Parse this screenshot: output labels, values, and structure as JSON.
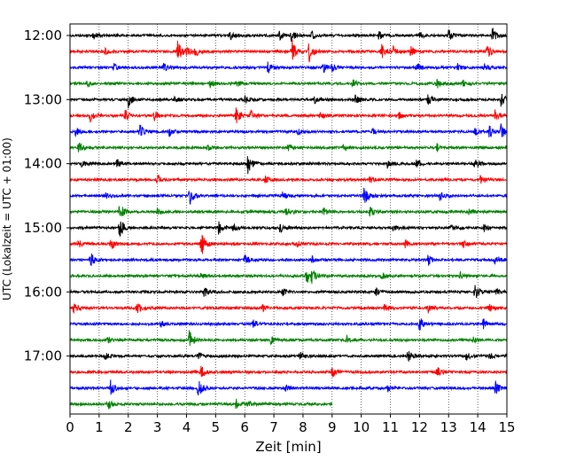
{
  "chart_data": {
    "type": "line",
    "title": "",
    "xlabel": "Zeit  [min]",
    "ylabel": "UTC (Lokalzeit = UTC + 01:00)",
    "xlim": [
      0,
      15
    ],
    "xticks": [
      "0",
      "1",
      "2",
      "3",
      "4",
      "5",
      "6",
      "7",
      "8",
      "9",
      "10",
      "11",
      "12",
      "13",
      "14",
      "15"
    ],
    "yticks": [
      "12:00",
      "13:00",
      "14:00",
      "15:00",
      "16:00",
      "17:00"
    ],
    "grid": "vertical dotted",
    "legend": "none",
    "trace_interval_min": 15,
    "traces": [
      {
        "start": "12:00",
        "color": "#000000",
        "end_min": 15,
        "events": [
          [
            0.8,
            4
          ],
          [
            5.5,
            5
          ],
          [
            7.2,
            6
          ],
          [
            7.6,
            6
          ],
          [
            8.3,
            5
          ],
          [
            10.6,
            5
          ],
          [
            12,
            4
          ],
          [
            13,
            6
          ],
          [
            14.5,
            9
          ]
        ]
      },
      {
        "start": "12:15",
        "color": "#ff0000",
        "end_min": 15,
        "events": [
          [
            1.2,
            4
          ],
          [
            3.7,
            12
          ],
          [
            4,
            5
          ],
          [
            4.3,
            6
          ],
          [
            7.6,
            16
          ],
          [
            8.2,
            14
          ],
          [
            10.7,
            8
          ],
          [
            11.1,
            5
          ],
          [
            11.7,
            6
          ],
          [
            14.3,
            10
          ]
        ]
      },
      {
        "start": "12:30",
        "color": "#0000ff",
        "end_min": 15,
        "events": [
          [
            1.5,
            4
          ],
          [
            3.2,
            5
          ],
          [
            6.8,
            7
          ],
          [
            8.7,
            6
          ],
          [
            9,
            4
          ],
          [
            11.9,
            5
          ],
          [
            13.3,
            4
          ],
          [
            14.2,
            5
          ]
        ]
      },
      {
        "start": "12:45",
        "color": "#008000",
        "end_min": 15,
        "events": [
          [
            0.6,
            4
          ],
          [
            4.8,
            5
          ],
          [
            5.7,
            4
          ],
          [
            9.7,
            6
          ],
          [
            12.6,
            5
          ],
          [
            13.5,
            4
          ]
        ]
      },
      {
        "start": "13:00",
        "color": "#000000",
        "end_min": 15,
        "events": [
          [
            2,
            9
          ],
          [
            3.6,
            4
          ],
          [
            6,
            5
          ],
          [
            8.4,
            4
          ],
          [
            9.8,
            5
          ],
          [
            12.3,
            6
          ],
          [
            14.8,
            8
          ]
        ]
      },
      {
        "start": "13:15",
        "color": "#ff0000",
        "end_min": 15,
        "events": [
          [
            0.7,
            7
          ],
          [
            1.9,
            6
          ],
          [
            2.9,
            6
          ],
          [
            5.7,
            9
          ],
          [
            6.2,
            6
          ],
          [
            8.6,
            5
          ],
          [
            11.3,
            5
          ],
          [
            14.6,
            7
          ]
        ]
      },
      {
        "start": "13:30",
        "color": "#0000ff",
        "end_min": 15,
        "events": [
          [
            0.2,
            5
          ],
          [
            2.4,
            8
          ],
          [
            3.4,
            5
          ],
          [
            7.8,
            4
          ],
          [
            10.4,
            4
          ],
          [
            13.9,
            4
          ],
          [
            14.4,
            7
          ],
          [
            14.8,
            9
          ]
        ]
      },
      {
        "start": "13:45",
        "color": "#008000",
        "end_min": 15,
        "events": [
          [
            0.3,
            6
          ],
          [
            4.7,
            4
          ],
          [
            7.5,
            4
          ],
          [
            9.4,
            4
          ],
          [
            12.6,
            4
          ]
        ]
      },
      {
        "start": "14:00",
        "color": "#000000",
        "end_min": 15,
        "events": [
          [
            0.4,
            4
          ],
          [
            1.6,
            6
          ],
          [
            6.1,
            12
          ],
          [
            10.9,
            5
          ],
          [
            11.9,
            6
          ],
          [
            13.9,
            8
          ]
        ]
      },
      {
        "start": "14:15",
        "color": "#ff0000",
        "end_min": 15,
        "events": [
          [
            3,
            5
          ],
          [
            6.7,
            4
          ],
          [
            10.3,
            4
          ],
          [
            14.1,
            5
          ]
        ]
      },
      {
        "start": "14:30",
        "color": "#0000ff",
        "end_min": 15,
        "events": [
          [
            1.2,
            4
          ],
          [
            4.1,
            11
          ],
          [
            7.3,
            4
          ],
          [
            10.1,
            16
          ],
          [
            12.7,
            5
          ]
        ]
      },
      {
        "start": "14:45",
        "color": "#008000",
        "end_min": 15,
        "events": [
          [
            1.7,
            11
          ],
          [
            3,
            4
          ],
          [
            7.4,
            6
          ],
          [
            8.7,
            5
          ],
          [
            10.3,
            6
          ],
          [
            13.7,
            4
          ]
        ]
      },
      {
        "start": "15:00",
        "color": "#000000",
        "end_min": 15,
        "events": [
          [
            1.7,
            12
          ],
          [
            5.1,
            7
          ],
          [
            5.6,
            5
          ],
          [
            7.2,
            6
          ],
          [
            11.1,
            5
          ],
          [
            13.1,
            4
          ],
          [
            14.2,
            5
          ]
        ]
      },
      {
        "start": "15:15",
        "color": "#ff0000",
        "end_min": 15,
        "events": [
          [
            0.3,
            4
          ],
          [
            1.4,
            7
          ],
          [
            4.5,
            16
          ],
          [
            7.8,
            4
          ],
          [
            11.5,
            5
          ],
          [
            13.5,
            4
          ]
        ]
      },
      {
        "start": "15:30",
        "color": "#0000ff",
        "end_min": 15,
        "events": [
          [
            0.7,
            9
          ],
          [
            6,
            6
          ],
          [
            8.3,
            4
          ],
          [
            12.3,
            6
          ],
          [
            14.6,
            7
          ]
        ]
      },
      {
        "start": "15:45",
        "color": "#008000",
        "end_min": 15,
        "events": [
          [
            8.1,
            11
          ],
          [
            8.3,
            6
          ],
          [
            4.5,
            4
          ],
          [
            10.7,
            4
          ],
          [
            13.4,
            4
          ]
        ]
      },
      {
        "start": "16:00",
        "color": "#000000",
        "end_min": 15,
        "events": [
          [
            4.6,
            6
          ],
          [
            7.3,
            4
          ],
          [
            10.5,
            4
          ],
          [
            13.9,
            11
          ],
          [
            14.6,
            4
          ]
        ]
      },
      {
        "start": "16:15",
        "color": "#ff0000",
        "end_min": 15,
        "events": [
          [
            0.1,
            7
          ],
          [
            2.3,
            7
          ],
          [
            6.6,
            4
          ],
          [
            10.8,
            4
          ],
          [
            12.3,
            4
          ],
          [
            14.4,
            4
          ]
        ]
      },
      {
        "start": "16:30",
        "color": "#0000ff",
        "end_min": 15,
        "events": [
          [
            3.1,
            4
          ],
          [
            6.3,
            4
          ],
          [
            12,
            9
          ],
          [
            14.2,
            6
          ]
        ]
      },
      {
        "start": "16:45",
        "color": "#008000",
        "end_min": 15,
        "events": [
          [
            1.3,
            4
          ],
          [
            4.1,
            12
          ],
          [
            6.9,
            4
          ],
          [
            9.5,
            4
          ],
          [
            13.8,
            4
          ]
        ]
      },
      {
        "start": "17:00",
        "color": "#000000",
        "end_min": 15,
        "events": [
          [
            1.2,
            4
          ],
          [
            4.4,
            4
          ],
          [
            7.9,
            7
          ],
          [
            11.6,
            7
          ],
          [
            13.6,
            5
          ],
          [
            14.4,
            4
          ]
        ]
      },
      {
        "start": "17:15",
        "color": "#ff0000",
        "end_min": 15,
        "events": [
          [
            4.5,
            7
          ],
          [
            9,
            6
          ],
          [
            12.6,
            6
          ]
        ]
      },
      {
        "start": "17:30",
        "color": "#0000ff",
        "end_min": 15,
        "events": [
          [
            1.4,
            10
          ],
          [
            4.4,
            11
          ],
          [
            7.4,
            4
          ],
          [
            10.9,
            4
          ],
          [
            14.6,
            8
          ]
        ]
      },
      {
        "start": "17:45",
        "color": "#008000",
        "end_min": 9,
        "events": [
          [
            1.3,
            6
          ],
          [
            5.7,
            7
          ],
          [
            6.1,
            4
          ]
        ]
      }
    ]
  }
}
